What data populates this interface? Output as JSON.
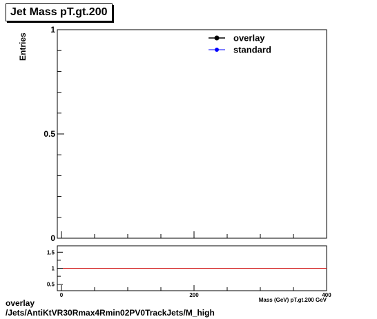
{
  "chart_data": [
    {
      "type": "line",
      "title": "Jet Mass pT.gt.200",
      "ylabel": "Entries",
      "xlabel": "Mass (GeV) pT.gt.200 GeV",
      "xlim": [
        0,
        400
      ],
      "ylim": [
        0,
        1
      ],
      "x_ticks": [
        "0",
        "200",
        "400"
      ],
      "y_ticks": [
        "0",
        "0.5",
        "1"
      ],
      "legend_position": "top-right",
      "series": [
        {
          "name": "overlay",
          "color": "#000000",
          "values": []
        },
        {
          "name": "standard",
          "color": "#0000ff",
          "values": []
        }
      ]
    },
    {
      "type": "line",
      "xlim": [
        0,
        400
      ],
      "ylim": [
        0.3,
        1.7
      ],
      "x_ticks": [
        "0",
        "200",
        "400"
      ],
      "y_ticks": [
        "0.5",
        "1",
        "1.5"
      ],
      "reference_line": {
        "y": 1,
        "color": "#cc0000"
      }
    }
  ],
  "footer": {
    "line1": "overlay",
    "line2": "/Jets/AntiKtVR30Rmax4Rmin02PV0TrackJets/M_high"
  }
}
